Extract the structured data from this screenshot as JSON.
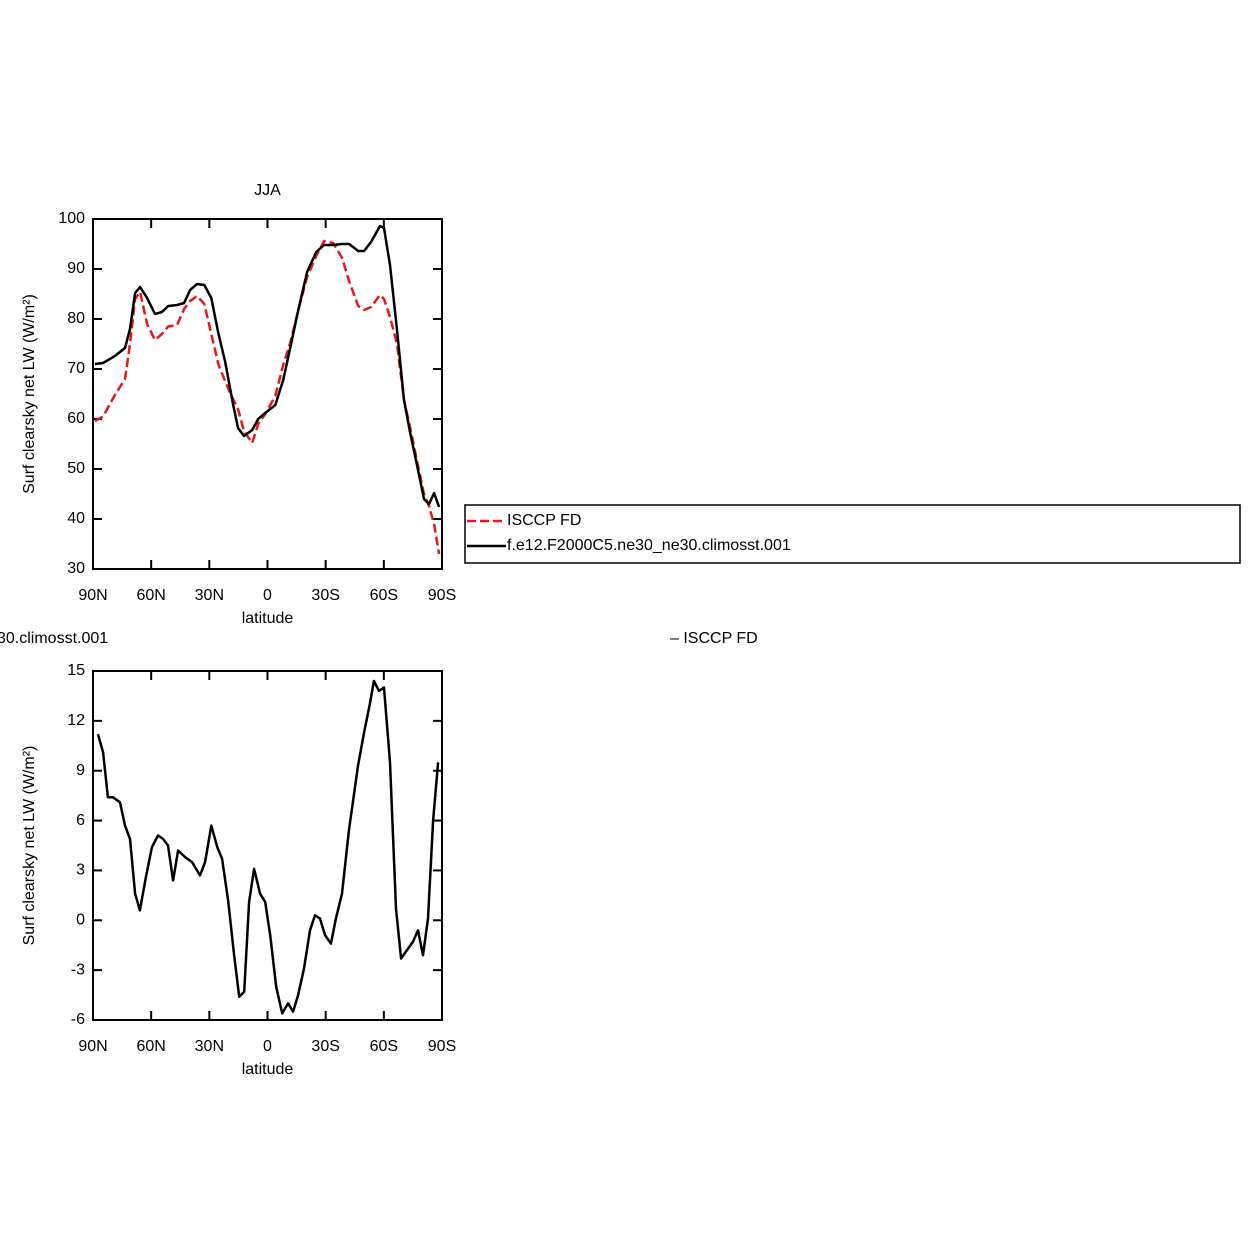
{
  "chart_data": [
    {
      "type": "line",
      "title": "JJA",
      "xlabel": "latitude",
      "ylabel": "Surf clearsky net LW (W/m²)",
      "x": [
        89,
        84.8,
        78.7,
        73.5,
        70.9,
        68.3,
        65.7,
        62.1,
        58,
        54.4,
        51.2,
        46.6,
        43,
        39.9,
        36.3,
        32.6,
        29,
        25.4,
        21.8,
        17.8,
        15.2,
        12.1,
        7.9,
        4.8,
        1.2,
        -4,
        -8.1,
        -11.7,
        -15.9,
        -20.4,
        -25.1,
        -29.2,
        -33.9,
        -38.5,
        -42.1,
        -46.8,
        -49.8,
        -53.4,
        -58,
        -60.1,
        -63.2,
        -66.8,
        -70.4,
        -73.5,
        -77.1,
        -80.7,
        -83.3,
        -85.9,
        -88.5
      ],
      "series": [
        {
          "name": "ISCCP FD",
          "color": "#e8171b",
          "dashed": true,
          "values": [
            59.6,
            60.5,
            64.8,
            68,
            75,
            84,
            85.4,
            79,
            75.8,
            77,
            78.5,
            78.8,
            82,
            83.6,
            84.6,
            83,
            77,
            71,
            67.5,
            64,
            62,
            57.6,
            55.2,
            59,
            61,
            64.6,
            70.8,
            75.2,
            81.8,
            88.4,
            92.6,
            95.6,
            95.2,
            92.2,
            87.6,
            82.6,
            81.8,
            82.4,
            84.8,
            84,
            80.4,
            75,
            63.8,
            58.4,
            51.6,
            45,
            42.6,
            39,
            33
          ]
        },
        {
          "name": "f.e12.F2000C5.ne30_ne30.climosst.001",
          "color": "#000000",
          "dashed": false,
          "values": [
            71,
            71.2,
            72.6,
            74.2,
            78,
            85.2,
            86.4,
            84.2,
            81,
            81.4,
            82.6,
            82.8,
            83.2,
            85.8,
            87,
            86.8,
            84.2,
            77.2,
            71.4,
            63,
            58.2,
            56.6,
            57.8,
            60,
            61.2,
            62.8,
            67.8,
            74.2,
            81.8,
            89.4,
            93.4,
            94.8,
            94.8,
            95,
            95,
            93.6,
            93.6,
            95.4,
            98.6,
            98.2,
            90.8,
            77.8,
            63.8,
            57.4,
            50.8,
            44,
            43,
            45.2,
            42.4
          ]
        }
      ],
      "xlim": [
        90,
        -90
      ],
      "xticks": [
        {
          "value": 90,
          "label": "90N"
        },
        {
          "value": 60,
          "label": "60N"
        },
        {
          "value": 30,
          "label": "30N"
        },
        0,
        {
          "value": -30,
          "label": "30S"
        },
        {
          "value": -60,
          "label": "60S"
        },
        {
          "value": -90,
          "label": "90S"
        }
      ],
      "ylim": [
        30,
        100
      ],
      "yticks": [
        30,
        40,
        50,
        60,
        70,
        80,
        90,
        100
      ],
      "legend": "right"
    },
    {
      "type": "line",
      "annotations": [
        "30.climosst.001",
        "– ISCCP FD"
      ],
      "xlabel": "latitude",
      "ylabel": "Surf clearsky net LW (W/m²)",
      "x": [
        87.4,
        84.8,
        82.3,
        79.7,
        76.1,
        73.5,
        70.9,
        68.3,
        65.8,
        62.7,
        59.6,
        56.5,
        53.9,
        51.3,
        48.7,
        46.1,
        42.5,
        38.9,
        34.8,
        32.2,
        29,
        25.9,
        23.4,
        20.3,
        17.1,
        14.6,
        12,
        9.5,
        6.9,
        3.8,
        1.2,
        -1.4,
        -4.5,
        -7.6,
        -10.6,
        -13.2,
        -15.8,
        -18.8,
        -21.9,
        -24.5,
        -27.1,
        -29.7,
        -32.7,
        -35.3,
        -38.4,
        -42,
        -46.7,
        -49.8,
        -52.9,
        -54.9,
        -57.5,
        -60.1,
        -63.2,
        -66.3,
        -68.9,
        -71.9,
        -75,
        -77.6,
        -80.2,
        -82.8,
        -85.4,
        -88
      ],
      "series": [
        {
          "color": "#000000",
          "dashed": false,
          "values": [
            11.2,
            10.1,
            7.4,
            7.4,
            7.1,
            5.7,
            4.9,
            1.6,
            0.6,
            2.6,
            4.4,
            5.1,
            4.9,
            4.5,
            2.4,
            4.2,
            3.8,
            3.5,
            2.7,
            3.5,
            5.7,
            4.4,
            3.7,
            1.2,
            -2.2,
            -4.6,
            -4.3,
            1.1,
            3.1,
            1.6,
            1.1,
            -0.9,
            -4,
            -5.6,
            -5,
            -5.5,
            -4.5,
            -2.9,
            -0.6,
            0.3,
            0.1,
            -0.9,
            -1.4,
            0.1,
            1.6,
            5.4,
            9.3,
            11.3,
            13.1,
            14.4,
            13.8,
            14,
            9.5,
            0.7,
            -2.3,
            -1.8,
            -1.3,
            -0.6,
            -2.1,
            0.1,
            6,
            9.5
          ]
        }
      ],
      "xlim": [
        90,
        -90
      ],
      "xticks": [
        {
          "value": 90,
          "label": "90N"
        },
        {
          "value": 60,
          "label": "60N"
        },
        {
          "value": 30,
          "label": "30N"
        },
        0,
        {
          "value": -30,
          "label": "30S"
        },
        {
          "value": -60,
          "label": "60S"
        },
        {
          "value": -90,
          "label": "90S"
        }
      ],
      "ylim": [
        -6,
        15
      ],
      "yticks": [
        -6,
        -3,
        0,
        3,
        6,
        9,
        12,
        15
      ]
    }
  ]
}
